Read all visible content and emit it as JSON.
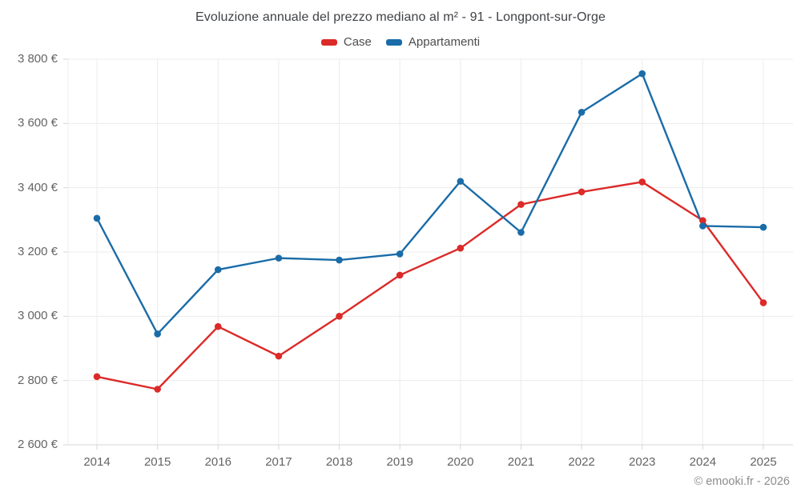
{
  "footer": {
    "credit": "© emooki.fr - 2026"
  },
  "colors": {
    "case_red": "#dc2a28",
    "appartamenti_blue": "#1a6ca8",
    "grid": "#ececec",
    "axis": "#d6d6d6",
    "title_text": "#3f4246",
    "axis_text": "#646464",
    "legend_text": "#4c4c4c",
    "credit_text": "#8d8d8d"
  },
  "chart_data": {
    "type": "line",
    "title": "Evoluzione annuale del prezzo mediano al m² - 91 - Longpont-sur-Orge",
    "categories": [
      "2014",
      "2015",
      "2016",
      "2017",
      "2018",
      "2019",
      "2020",
      "2021",
      "2022",
      "2023",
      "2024",
      "2025"
    ],
    "series": [
      {
        "name": "Case",
        "color": "#dc2a28",
        "values": [
          2812,
          2773,
          2968,
          2876,
          3000,
          3128,
          3212,
          3348,
          3387,
          3418,
          3298,
          3042
        ]
      },
      {
        "name": "Appartamenti",
        "color": "#1a6ca8",
        "values": [
          3305,
          2945,
          3145,
          3181,
          3175,
          3194,
          3420,
          3261,
          3635,
          3755,
          3281,
          3277
        ]
      }
    ],
    "xlabel": "",
    "ylabel": "",
    "ylim": [
      2600,
      3800
    ],
    "ytick_step": 200,
    "ytick_labels": [
      "2 600 €",
      "2 800 €",
      "3 000 €",
      "3 200 €",
      "3 400 €",
      "3 600 €",
      "3 800 €"
    ],
    "currency_suffix": " €",
    "grid": true,
    "legend_position": "top",
    "marker": "circle"
  }
}
